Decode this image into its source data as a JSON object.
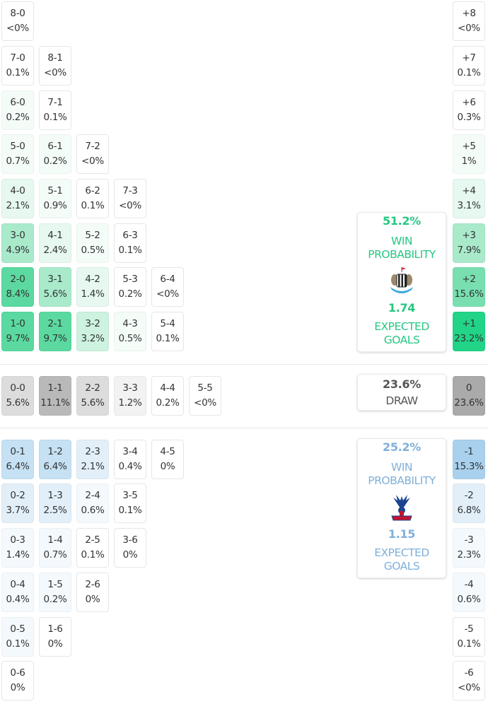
{
  "colors": {
    "home_accent": "#27c782",
    "away_accent": "#7fb0d9",
    "draw_text": "#555555",
    "home_scale": [
      "#ffffff",
      "#f4fcf8",
      "#e6f8ef",
      "#cdf2df",
      "#a9eacb",
      "#79dfb0",
      "#5bd9a0",
      "#22d487"
    ],
    "away_scale": [
      "#ffffff",
      "#f4f9fd",
      "#e2eff9",
      "#c5e1f3",
      "#a9d1ee"
    ],
    "draw_scale": [
      "#ffffff",
      "#f2f2f2",
      "#dcdcdc",
      "#b9b9b9",
      "#aaaaaa"
    ]
  },
  "home_panel": {
    "win_pct": "51.2%",
    "win_label_1": "WIN",
    "win_label_2": "PROBABILITY",
    "crest": "newcastle-crest-icon",
    "xg": "1.74",
    "xg_label_1": "EXPECTED",
    "xg_label_2": "GOALS"
  },
  "draw_panel": {
    "pct": "23.6%",
    "label": "DRAW"
  },
  "away_panel": {
    "win_pct": "25.2%",
    "win_label_1": "WIN",
    "win_label_2": "PROBABILITY",
    "crest": "crystal-palace-crest-icon",
    "xg": "1.15",
    "xg_label_1": "EXPECTED",
    "xg_label_2": "GOALS"
  },
  "chart_data": {
    "type": "heatmap",
    "title": "Scoreline probability matrix",
    "home_wins": [
      {
        "row": 0,
        "cells": [
          {
            "score": "8-0",
            "pct": "<0%",
            "lvl": 0
          }
        ]
      },
      {
        "row": 1,
        "cells": [
          {
            "score": "7-0",
            "pct": "0.1%",
            "lvl": 0
          },
          {
            "score": "8-1",
            "pct": "<0%",
            "lvl": 0
          }
        ]
      },
      {
        "row": 2,
        "cells": [
          {
            "score": "6-0",
            "pct": "0.2%",
            "lvl": 1
          },
          {
            "score": "7-1",
            "pct": "0.1%",
            "lvl": 0
          }
        ]
      },
      {
        "row": 3,
        "cells": [
          {
            "score": "5-0",
            "pct": "0.7%",
            "lvl": 1
          },
          {
            "score": "6-1",
            "pct": "0.2%",
            "lvl": 1
          },
          {
            "score": "7-2",
            "pct": "<0%",
            "lvl": 0
          }
        ]
      },
      {
        "row": 4,
        "cells": [
          {
            "score": "4-0",
            "pct": "2.1%",
            "lvl": 2
          },
          {
            "score": "5-1",
            "pct": "0.9%",
            "lvl": 1
          },
          {
            "score": "6-2",
            "pct": "0.1%",
            "lvl": 0
          },
          {
            "score": "7-3",
            "pct": "<0%",
            "lvl": 0
          }
        ]
      },
      {
        "row": 5,
        "cells": [
          {
            "score": "3-0",
            "pct": "4.9%",
            "lvl": 4
          },
          {
            "score": "4-1",
            "pct": "2.4%",
            "lvl": 2
          },
          {
            "score": "5-2",
            "pct": "0.5%",
            "lvl": 1
          },
          {
            "score": "6-3",
            "pct": "0.1%",
            "lvl": 0
          }
        ]
      },
      {
        "row": 6,
        "cells": [
          {
            "score": "2-0",
            "pct": "8.4%",
            "lvl": 6
          },
          {
            "score": "3-1",
            "pct": "5.6%",
            "lvl": 4
          },
          {
            "score": "4-2",
            "pct": "1.4%",
            "lvl": 2
          },
          {
            "score": "5-3",
            "pct": "0.2%",
            "lvl": 0
          },
          {
            "score": "6-4",
            "pct": "<0%",
            "lvl": 0
          }
        ]
      },
      {
        "row": 7,
        "cells": [
          {
            "score": "1-0",
            "pct": "9.7%",
            "lvl": 6
          },
          {
            "score": "2-1",
            "pct": "9.7%",
            "lvl": 6
          },
          {
            "score": "3-2",
            "pct": "3.2%",
            "lvl": 3
          },
          {
            "score": "4-3",
            "pct": "0.5%",
            "lvl": 1
          },
          {
            "score": "5-4",
            "pct": "0.1%",
            "lvl": 0
          }
        ]
      }
    ],
    "draws": [
      {
        "score": "0-0",
        "pct": "5.6%",
        "lvl": 2
      },
      {
        "score": "1-1",
        "pct": "11.1%",
        "lvl": 3
      },
      {
        "score": "2-2",
        "pct": "5.6%",
        "lvl": 2
      },
      {
        "score": "3-3",
        "pct": "1.2%",
        "lvl": 1
      },
      {
        "score": "4-4",
        "pct": "0.2%",
        "lvl": 0
      },
      {
        "score": "5-5",
        "pct": "<0%",
        "lvl": 0
      }
    ],
    "away_wins": [
      {
        "row": 0,
        "cells": [
          {
            "score": "0-1",
            "pct": "6.4%",
            "lvl": 3
          },
          {
            "score": "1-2",
            "pct": "6.4%",
            "lvl": 3
          },
          {
            "score": "2-3",
            "pct": "2.1%",
            "lvl": 2
          },
          {
            "score": "3-4",
            "pct": "0.4%",
            "lvl": 0
          },
          {
            "score": "4-5",
            "pct": "0%",
            "lvl": 0
          }
        ]
      },
      {
        "row": 1,
        "cells": [
          {
            "score": "0-2",
            "pct": "3.7%",
            "lvl": 2
          },
          {
            "score": "1-3",
            "pct": "2.5%",
            "lvl": 2
          },
          {
            "score": "2-4",
            "pct": "0.6%",
            "lvl": 1
          },
          {
            "score": "3-5",
            "pct": "0.1%",
            "lvl": 0
          }
        ]
      },
      {
        "row": 2,
        "cells": [
          {
            "score": "0-3",
            "pct": "1.4%",
            "lvl": 1
          },
          {
            "score": "1-4",
            "pct": "0.7%",
            "lvl": 1
          },
          {
            "score": "2-5",
            "pct": "0.1%",
            "lvl": 0
          },
          {
            "score": "3-6",
            "pct": "0%",
            "lvl": 0
          }
        ]
      },
      {
        "row": 3,
        "cells": [
          {
            "score": "0-4",
            "pct": "0.4%",
            "lvl": 1
          },
          {
            "score": "1-5",
            "pct": "0.2%",
            "lvl": 1
          },
          {
            "score": "2-6",
            "pct": "0%",
            "lvl": 0
          }
        ]
      },
      {
        "row": 4,
        "cells": [
          {
            "score": "0-5",
            "pct": "0.1%",
            "lvl": 1
          },
          {
            "score": "1-6",
            "pct": "0%",
            "lvl": 0
          }
        ]
      },
      {
        "row": 5,
        "cells": [
          {
            "score": "0-6",
            "pct": "0%",
            "lvl": 0
          }
        ]
      }
    ],
    "margins": [
      {
        "margin": "+8",
        "pct": "<0%",
        "side": "home",
        "lvl": 0
      },
      {
        "margin": "+7",
        "pct": "0.1%",
        "side": "home",
        "lvl": 0
      },
      {
        "margin": "+6",
        "pct": "0.3%",
        "side": "home",
        "lvl": 0
      },
      {
        "margin": "+5",
        "pct": "1%",
        "side": "home",
        "lvl": 1
      },
      {
        "margin": "+4",
        "pct": "3.1%",
        "side": "home",
        "lvl": 2
      },
      {
        "margin": "+3",
        "pct": "7.9%",
        "side": "home",
        "lvl": 4
      },
      {
        "margin": "+2",
        "pct": "15.6%",
        "side": "home",
        "lvl": 5
      },
      {
        "margin": "+1",
        "pct": "23.2%",
        "side": "home",
        "lvl": 7
      },
      {
        "margin": "0",
        "pct": "23.6%",
        "side": "draw",
        "lvl": 4
      },
      {
        "margin": "-1",
        "pct": "15.3%",
        "side": "away",
        "lvl": 4
      },
      {
        "margin": "-2",
        "pct": "6.8%",
        "side": "away",
        "lvl": 2
      },
      {
        "margin": "-3",
        "pct": "2.3%",
        "side": "away",
        "lvl": 1
      },
      {
        "margin": "-4",
        "pct": "0.6%",
        "side": "away",
        "lvl": 1
      },
      {
        "margin": "-5",
        "pct": "0.1%",
        "side": "away",
        "lvl": 0
      },
      {
        "margin": "-6",
        "pct": "<0%",
        "side": "away",
        "lvl": 0
      }
    ]
  }
}
